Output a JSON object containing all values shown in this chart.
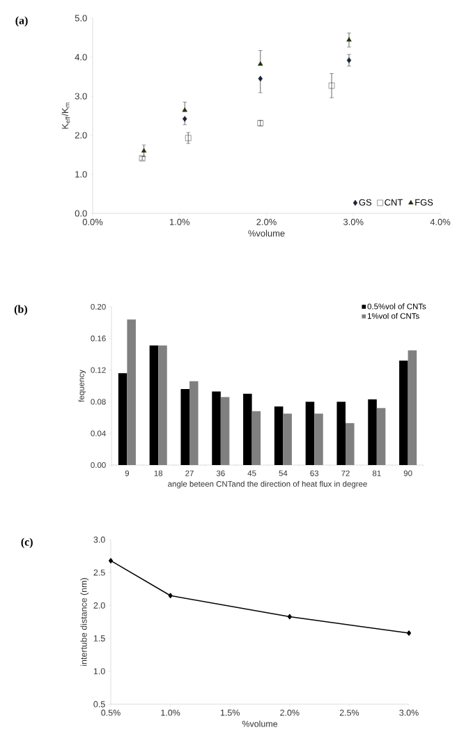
{
  "chart_data": [
    {
      "type": "scatter",
      "title": "(a)",
      "xlabel": "%volume",
      "ylabel": "K$_{eff}$/K$_{m}$",
      "series": [
        {
          "name": "GS",
          "color": "#1a2238",
          "marker": "diamond",
          "x": [
            1.06,
            1.93,
            2.95
          ],
          "values": [
            2.42,
            3.45,
            3.92
          ],
          "errors": [
            [
              2.27,
              2.42
            ],
            [
              3.09,
              3.45
            ],
            0.15
          ]
        },
        {
          "name": "CNT",
          "color": "#000000",
          "marker": "square",
          "x": [
            0.57,
            1.1,
            1.93,
            2.75
          ],
          "values": [
            1.41,
            1.93,
            2.31,
            3.27
          ],
          "errors": [
            0.05,
            0.14,
            0.07,
            0.31
          ]
        },
        {
          "name": "FGS",
          "color": "#1f3300",
          "marker": "triangle",
          "x": [
            0.59,
            1.06,
            1.93,
            2.95
          ],
          "values": [
            1.6,
            2.64,
            3.82,
            4.44
          ],
          "errors": [
            0.15,
            [
              2.64,
              2.85
            ],
            [
              3.82,
              4.17
            ],
            0.18
          ]
        }
      ],
      "xlim": [
        0,
        4
      ],
      "xticks": [
        {
          "value": 0,
          "label": "0.0%"
        },
        {
          "value": 1,
          "label": "1.0%"
        },
        {
          "value": 2,
          "label": "2.0%"
        },
        {
          "value": 3,
          "label": "3.0%"
        },
        {
          "value": 4,
          "label": "4.0%"
        }
      ],
      "ylim": [
        0,
        5
      ],
      "yticks": [
        {
          "value": 0,
          "label": "0.0"
        },
        {
          "value": 1,
          "label": "1.0"
        },
        {
          "value": 2,
          "label": "2.0"
        },
        {
          "value": 3,
          "label": "3.0"
        },
        {
          "value": 4,
          "label": "4.0"
        },
        {
          "value": 5,
          "label": "5.0"
        }
      ],
      "legend": "bottom right"
    },
    {
      "type": "bar",
      "title": "(b)",
      "xlabel": "angle beteen CNTand the direction of heat flux in degree",
      "ylabel": "fequency",
      "categories": [
        "9",
        "18",
        "27",
        "36",
        "45",
        "54",
        "63",
        "72",
        "81",
        "90"
      ],
      "series": [
        {
          "name": "0.5%vol of CNTs",
          "color": "#000000",
          "values": [
            0.116,
            0.151,
            0.096,
            0.093,
            0.09,
            0.074,
            0.08,
            0.08,
            0.083,
            0.132
          ]
        },
        {
          "name": "1%vol of CNTs",
          "color": "#808080",
          "values": [
            0.184,
            0.151,
            0.106,
            0.086,
            0.068,
            0.065,
            0.065,
            0.053,
            0.072,
            0.145
          ]
        }
      ],
      "ylim": [
        0,
        0.2
      ],
      "yticks": [
        {
          "value": 0,
          "label": "0.00"
        },
        {
          "value": 0.04,
          "label": "0.04"
        },
        {
          "value": 0.08,
          "label": "0.08"
        },
        {
          "value": 0.12,
          "label": "0.12"
        },
        {
          "value": 0.16,
          "label": "0.16"
        },
        {
          "value": 0.2,
          "label": "0.20"
        }
      ],
      "legend": "top right"
    },
    {
      "type": "line",
      "title": "(c)",
      "xlabel": "%volume",
      "ylabel": "intertube distance (nm)",
      "x": [
        0.5,
        1.0,
        2.0,
        3.0
      ],
      "values": [
        2.68,
        2.15,
        1.83,
        1.58
      ],
      "color": "#000000",
      "marker": "diamond",
      "line_style": "solid",
      "xlim": [
        0.5,
        3.0
      ],
      "xticks": [
        {
          "value": 0.5,
          "label": "0.5%"
        },
        {
          "value": 1.0,
          "label": "1.0%"
        },
        {
          "value": 1.5,
          "label": "1.5%"
        },
        {
          "value": 2.0,
          "label": "2.0%"
        },
        {
          "value": 2.5,
          "label": "2.5%"
        },
        {
          "value": 3.0,
          "label": "3.0%"
        }
      ],
      "ylim": [
        0.5,
        3.0
      ],
      "yticks": [
        {
          "value": 0.5,
          "label": "0.5"
        },
        {
          "value": 1.0,
          "label": "1.0"
        },
        {
          "value": 1.5,
          "label": "1.5"
        },
        {
          "value": 2.0,
          "label": "2.0"
        },
        {
          "value": 2.5,
          "label": "2.5"
        },
        {
          "value": 3.0,
          "label": "3.0"
        }
      ]
    }
  ]
}
